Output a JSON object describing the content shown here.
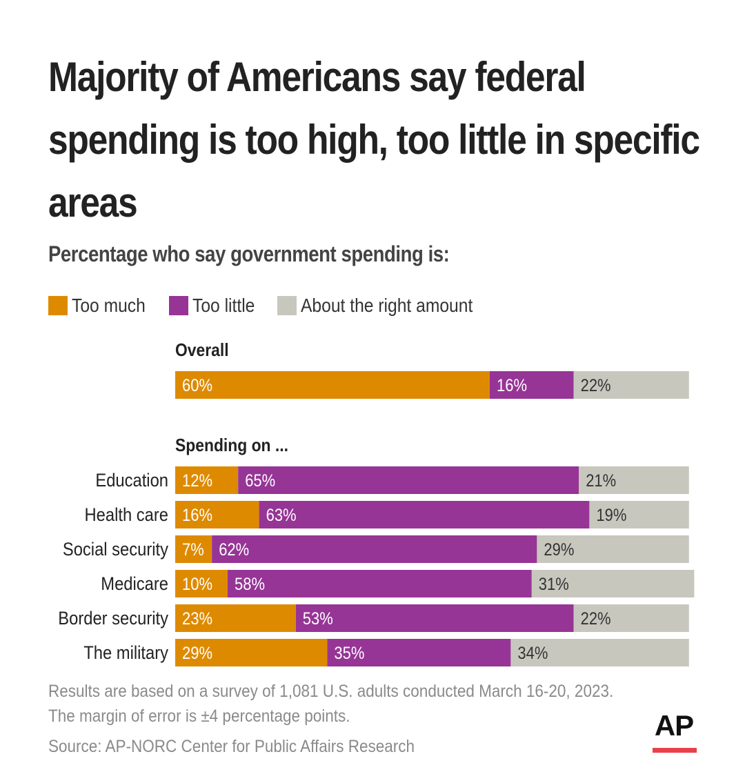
{
  "title": "Majority of Americans say federal spending is too high, too little in specific areas",
  "subtitle": "Percentage who say government spending is:",
  "legend": [
    {
      "label": "Too much",
      "color": "#de8a00"
    },
    {
      "label": "Too little",
      "color": "#963596"
    },
    {
      "label": "About the right amount",
      "color": "#c8c7be"
    }
  ],
  "sections": {
    "overall": "Overall",
    "spending_on": "Spending on ..."
  },
  "footnotes": {
    "line1": "Results are based on a survey of 1,081 U.S. adults conducted March 16-20, 2023.",
    "line2": "The margin of error is ±4 percentage points.",
    "source": "Source: AP-NORC Center for Public Affairs Research"
  },
  "logo": "AP",
  "chart_data": {
    "type": "bar",
    "orientation": "horizontal",
    "stacked": true,
    "series_names": [
      "Too much",
      "Too little",
      "About the right amount"
    ],
    "colors": [
      "#de8a00",
      "#963596",
      "#c8c7be"
    ],
    "overall": {
      "label": "",
      "values": [
        60,
        16,
        22
      ],
      "value_labels": [
        "60%",
        "16%",
        "22%"
      ]
    },
    "categories": [
      "Education",
      "Health care",
      "Social security",
      "Medicare",
      "Border security",
      "The military"
    ],
    "values": [
      [
        12,
        65,
        21
      ],
      [
        16,
        63,
        19
      ],
      [
        7,
        62,
        29
      ],
      [
        10,
        58,
        31
      ],
      [
        23,
        53,
        22
      ],
      [
        29,
        35,
        34
      ]
    ],
    "value_labels": [
      [
        "12%",
        "65%",
        "21%"
      ],
      [
        "16%",
        "63%",
        "19%"
      ],
      [
        "7%",
        "62%",
        "29%"
      ],
      [
        "10%",
        "58%",
        "31%"
      ],
      [
        "23%",
        "53%",
        "22%"
      ],
      [
        "29%",
        "35%",
        "34%"
      ]
    ]
  }
}
